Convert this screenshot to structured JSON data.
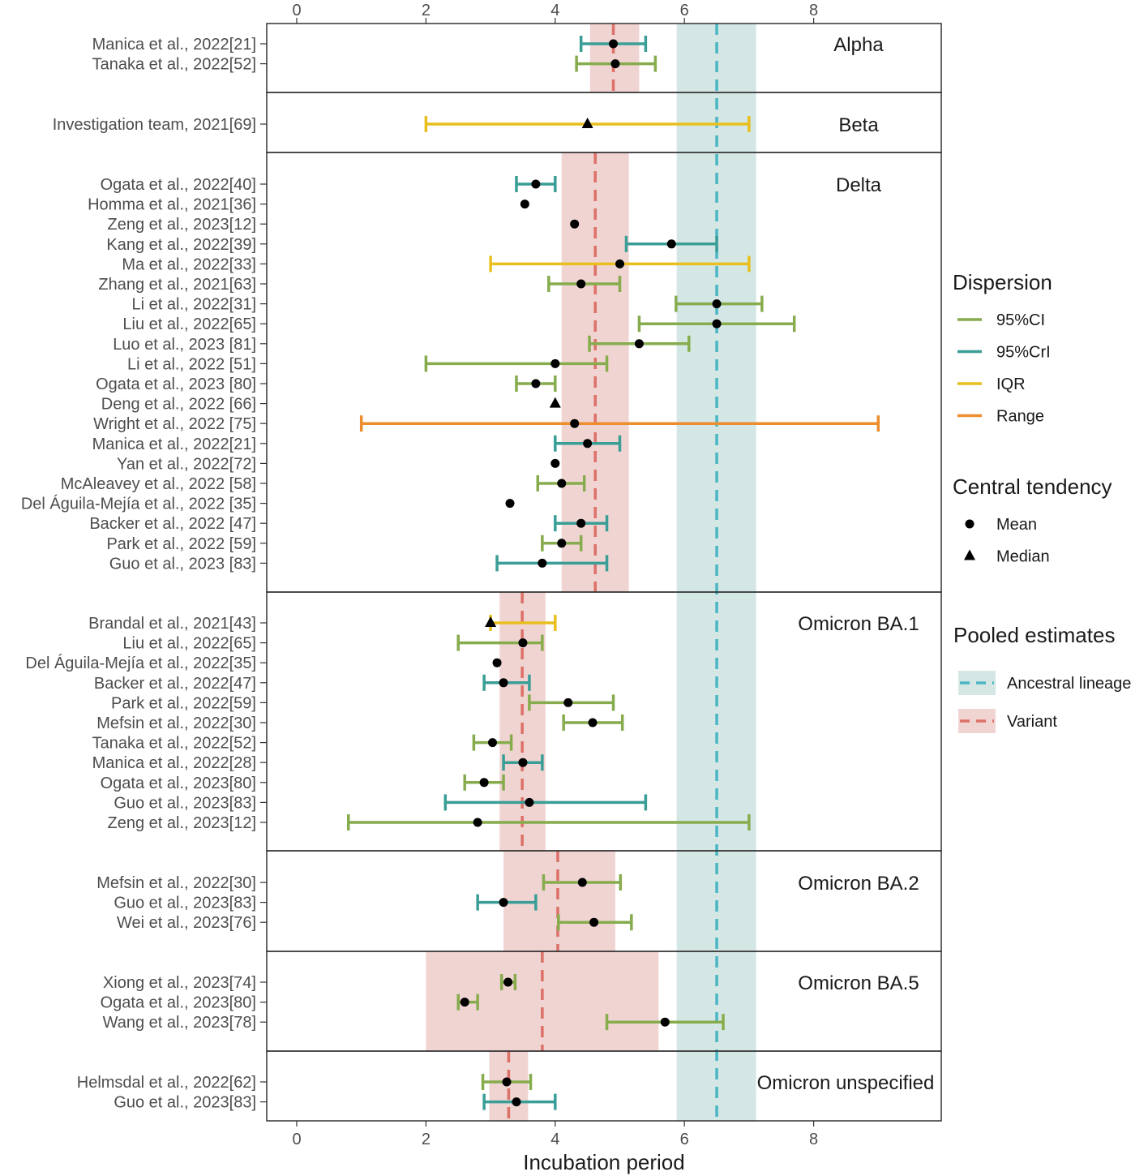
{
  "chart_data": {
    "type": "forest",
    "title": "",
    "xlabel": "Incubation period",
    "ylabel": "",
    "xlim": [
      -0.45,
      9.95
    ],
    "x_ticks": [
      0,
      2,
      4,
      6,
      8
    ],
    "x_tick_labels": [
      "0",
      "2",
      "4",
      "6",
      "8"
    ],
    "colors": {
      "95%CI": "#86ac4d",
      "95%CrI": "#3a9e96",
      "IQR": "#e9bf1f",
      "Range": "#ed8e2e",
      "ancestral_band": "#d5e7e5",
      "ancestral_line": "#4bb6c3",
      "variant_band": "#f0d4d2",
      "variant_line": "#dc7168",
      "point": "#000000",
      "panel_border": "#333333"
    },
    "ancestral_lineage": {
      "estimate": 6.5,
      "lower": 5.88,
      "upper": 7.11
    },
    "panels": [
      {
        "name": "Alpha",
        "pooled": {
          "estimate": 4.9,
          "lower": 4.54,
          "upper": 5.3
        },
        "studies": [
          {
            "label": "Manica et al., 2022[21]",
            "point": 4.9,
            "stat": "Mean",
            "lower": 4.4,
            "upper": 5.4,
            "dispersion": "95%CrI"
          },
          {
            "label": "Tanaka et al., 2022[52]",
            "point": 4.93,
            "stat": "Mean",
            "lower": 4.33,
            "upper": 5.55,
            "dispersion": "95%CI"
          }
        ]
      },
      {
        "name": "Beta",
        "pooled": null,
        "studies": [
          {
            "label": "Investigation team, 2021[69]",
            "point": 4.5,
            "stat": "Median",
            "lower": 2.0,
            "upper": 7.0,
            "dispersion": "IQR"
          }
        ]
      },
      {
        "name": "Delta",
        "pooled": {
          "estimate": 4.62,
          "lower": 4.1,
          "upper": 5.14
        },
        "studies": [
          {
            "label": "Ogata et al., 2022[40]",
            "point": 3.7,
            "stat": "Mean",
            "lower": 3.4,
            "upper": 4.0,
            "dispersion": "95%CrI"
          },
          {
            "label": "Homma et al., 2021[36]",
            "point": 3.53,
            "stat": "Mean",
            "lower": null,
            "upper": null,
            "dispersion": null
          },
          {
            "label": "Zeng et al., 2023[12]",
            "point": 4.3,
            "stat": "Mean",
            "lower": null,
            "upper": null,
            "dispersion": null
          },
          {
            "label": "Kang et al., 2022[39]",
            "point": 5.8,
            "stat": "Mean",
            "lower": 5.1,
            "upper": 6.5,
            "dispersion": "95%CrI"
          },
          {
            "label": "Ma et al., 2022[33]",
            "point": 5.0,
            "stat": "Mean",
            "lower": 3.0,
            "upper": 7.0,
            "dispersion": "IQR"
          },
          {
            "label": "Zhang et al., 2021[63]",
            "point": 4.4,
            "stat": "Mean",
            "lower": 3.9,
            "upper": 5.0,
            "dispersion": "95%CI"
          },
          {
            "label": "Li et al., 2022[31]",
            "point": 6.5,
            "stat": "Mean",
            "lower": 5.87,
            "upper": 7.2,
            "dispersion": "95%CI"
          },
          {
            "label": "Liu et al., 2022[65]",
            "point": 6.5,
            "stat": "Mean",
            "lower": 5.3,
            "upper": 7.7,
            "dispersion": "95%CI"
          },
          {
            "label": "Luo et al., 2023 [81]",
            "point": 5.3,
            "stat": "Mean",
            "lower": 4.53,
            "upper": 6.07,
            "dispersion": "95%CI"
          },
          {
            "label": "Li et al., 2022 [51]",
            "point": 4.0,
            "stat": "Mean",
            "lower": 2.0,
            "upper": 4.8,
            "dispersion": "95%CI"
          },
          {
            "label": "Ogata et al., 2023 [80]",
            "point": 3.7,
            "stat": "Mean",
            "lower": 3.4,
            "upper": 4.0,
            "dispersion": "95%CI"
          },
          {
            "label": "Deng et al., 2022 [66]",
            "point": 4.0,
            "stat": "Median",
            "lower": null,
            "upper": null,
            "dispersion": null
          },
          {
            "label": "Wright et al., 2022 [75]",
            "point": 4.3,
            "stat": "Mean",
            "lower": 1.0,
            "upper": 9.0,
            "dispersion": "Range"
          },
          {
            "label": "Manica et al., 2022[21]",
            "point": 4.5,
            "stat": "Mean",
            "lower": 4.0,
            "upper": 5.0,
            "dispersion": "95%CrI"
          },
          {
            "label": "Yan et al., 2022[72]",
            "point": 4.0,
            "stat": "Mean",
            "lower": null,
            "upper": null,
            "dispersion": null
          },
          {
            "label": "McAleavey et al., 2022 [58]",
            "point": 4.1,
            "stat": "Mean",
            "lower": 3.73,
            "upper": 4.45,
            "dispersion": "95%CI"
          },
          {
            "label": "Del Águila-Mejía et al., 2022 [35]",
            "point": 3.3,
            "stat": "Mean",
            "lower": null,
            "upper": null,
            "dispersion": null
          },
          {
            "label": "Backer et al., 2022 [47]",
            "point": 4.4,
            "stat": "Mean",
            "lower": 4.0,
            "upper": 4.8,
            "dispersion": "95%CrI"
          },
          {
            "label": "Park et al., 2022 [59]",
            "point": 4.1,
            "stat": "Mean",
            "lower": 3.8,
            "upper": 4.4,
            "dispersion": "95%CI"
          },
          {
            "label": "Guo et al., 2023 [83]",
            "point": 3.8,
            "stat": "Mean",
            "lower": 3.1,
            "upper": 4.8,
            "dispersion": "95%CrI"
          }
        ]
      },
      {
        "name": "Omicron BA.1",
        "pooled": {
          "estimate": 3.49,
          "lower": 3.14,
          "upper": 3.85
        },
        "studies": [
          {
            "label": "Brandal et al., 2021[43]",
            "point": 3.0,
            "stat": "Median",
            "lower": 3.0,
            "upper": 4.0,
            "dispersion": "IQR"
          },
          {
            "label": "Liu et al., 2022[65]",
            "point": 3.5,
            "stat": "Mean",
            "lower": 2.5,
            "upper": 3.8,
            "dispersion": "95%CI"
          },
          {
            "label": "Del Águila-Mejía et al., 2022[35]",
            "point": 3.1,
            "stat": "Mean",
            "lower": null,
            "upper": null,
            "dispersion": null
          },
          {
            "label": "Backer et al., 2022[47]",
            "point": 3.2,
            "stat": "Mean",
            "lower": 2.9,
            "upper": 3.6,
            "dispersion": "95%CrI"
          },
          {
            "label": "Park et al., 2022[59]",
            "point": 4.2,
            "stat": "Mean",
            "lower": 3.6,
            "upper": 4.9,
            "dispersion": "95%CI"
          },
          {
            "label": "Mefsin et al., 2022[30]",
            "point": 4.58,
            "stat": "Mean",
            "lower": 4.13,
            "upper": 5.04,
            "dispersion": "95%CI"
          },
          {
            "label": "Tanaka et al., 2022[52]",
            "point": 3.03,
            "stat": "Mean",
            "lower": 2.74,
            "upper": 3.32,
            "dispersion": "95%CI"
          },
          {
            "label": "Manica et al., 2022[28]",
            "point": 3.5,
            "stat": "Mean",
            "lower": 3.2,
            "upper": 3.8,
            "dispersion": "95%CrI"
          },
          {
            "label": "Ogata et al., 2023[80]",
            "point": 2.9,
            "stat": "Mean",
            "lower": 2.6,
            "upper": 3.2,
            "dispersion": "95%CI"
          },
          {
            "label": "Guo et al., 2023[83]",
            "point": 3.6,
            "stat": "Mean",
            "lower": 2.3,
            "upper": 5.4,
            "dispersion": "95%CrI"
          },
          {
            "label": "Zeng et al., 2023[12]",
            "point": 2.8,
            "stat": "Mean",
            "lower": 0.8,
            "upper": 7.0,
            "dispersion": "95%CI"
          }
        ]
      },
      {
        "name": "Omicron BA.2",
        "pooled": {
          "estimate": 4.04,
          "lower": 3.2,
          "upper": 4.93
        },
        "studies": [
          {
            "label": "Mefsin et al., 2022[30]",
            "point": 4.42,
            "stat": "Mean",
            "lower": 3.82,
            "upper": 5.01,
            "dispersion": "95%CI"
          },
          {
            "label": "Guo et al., 2023[83]",
            "point": 3.2,
            "stat": "Mean",
            "lower": 2.8,
            "upper": 3.7,
            "dispersion": "95%CrI"
          },
          {
            "label": "Wei et al., 2023[76]",
            "point": 4.6,
            "stat": "Mean",
            "lower": 4.05,
            "upper": 5.18,
            "dispersion": "95%CI"
          }
        ]
      },
      {
        "name": "Omicron BA.5",
        "pooled": {
          "estimate": 3.8,
          "lower": 2.0,
          "upper": 5.6
        },
        "studies": [
          {
            "label": "Xiong et al., 2023[74]",
            "point": 3.27,
            "stat": "Mean",
            "lower": 3.17,
            "upper": 3.38,
            "dispersion": "95%CI"
          },
          {
            "label": "Ogata et al., 2023[80]",
            "point": 2.6,
            "stat": "Mean",
            "lower": 2.5,
            "upper": 2.8,
            "dispersion": "95%CI"
          },
          {
            "label": "Wang et al., 2023[78]",
            "point": 5.7,
            "stat": "Mean",
            "lower": 4.8,
            "upper": 6.6,
            "dispersion": "95%CI"
          }
        ]
      },
      {
        "name": "Omicron unspecified",
        "pooled": {
          "estimate": 3.28,
          "lower": 2.98,
          "upper": 3.58
        },
        "studies": [
          {
            "label": "Helmsdal et al., 2022[62]",
            "point": 3.25,
            "stat": "Mean",
            "lower": 2.88,
            "upper": 3.62,
            "dispersion": "95%CI"
          },
          {
            "label": "Guo et al., 2023[83]",
            "point": 3.4,
            "stat": "Mean",
            "lower": 2.9,
            "upper": 4.0,
            "dispersion": "95%CrI"
          }
        ]
      }
    ],
    "legend": {
      "placement": "right",
      "groups": [
        {
          "title": "Dispersion",
          "kind": "line",
          "items": [
            {
              "label": "95%CI",
              "key": "95%CI"
            },
            {
              "label": "95%CrI",
              "key": "95%CrI"
            },
            {
              "label": "IQR",
              "key": "IQR"
            },
            {
              "label": "Range",
              "key": "Range"
            }
          ]
        },
        {
          "title": "Central tendency",
          "kind": "shape",
          "items": [
            {
              "label": "Mean",
              "key": "circle"
            },
            {
              "label": "Median",
              "key": "triangle"
            }
          ]
        },
        {
          "title": "Pooled estimates",
          "kind": "band",
          "items": [
            {
              "label": "Ancestral lineage",
              "key": "ancestral"
            },
            {
              "label": "Variant",
              "key": "variant"
            }
          ]
        }
      ]
    }
  }
}
